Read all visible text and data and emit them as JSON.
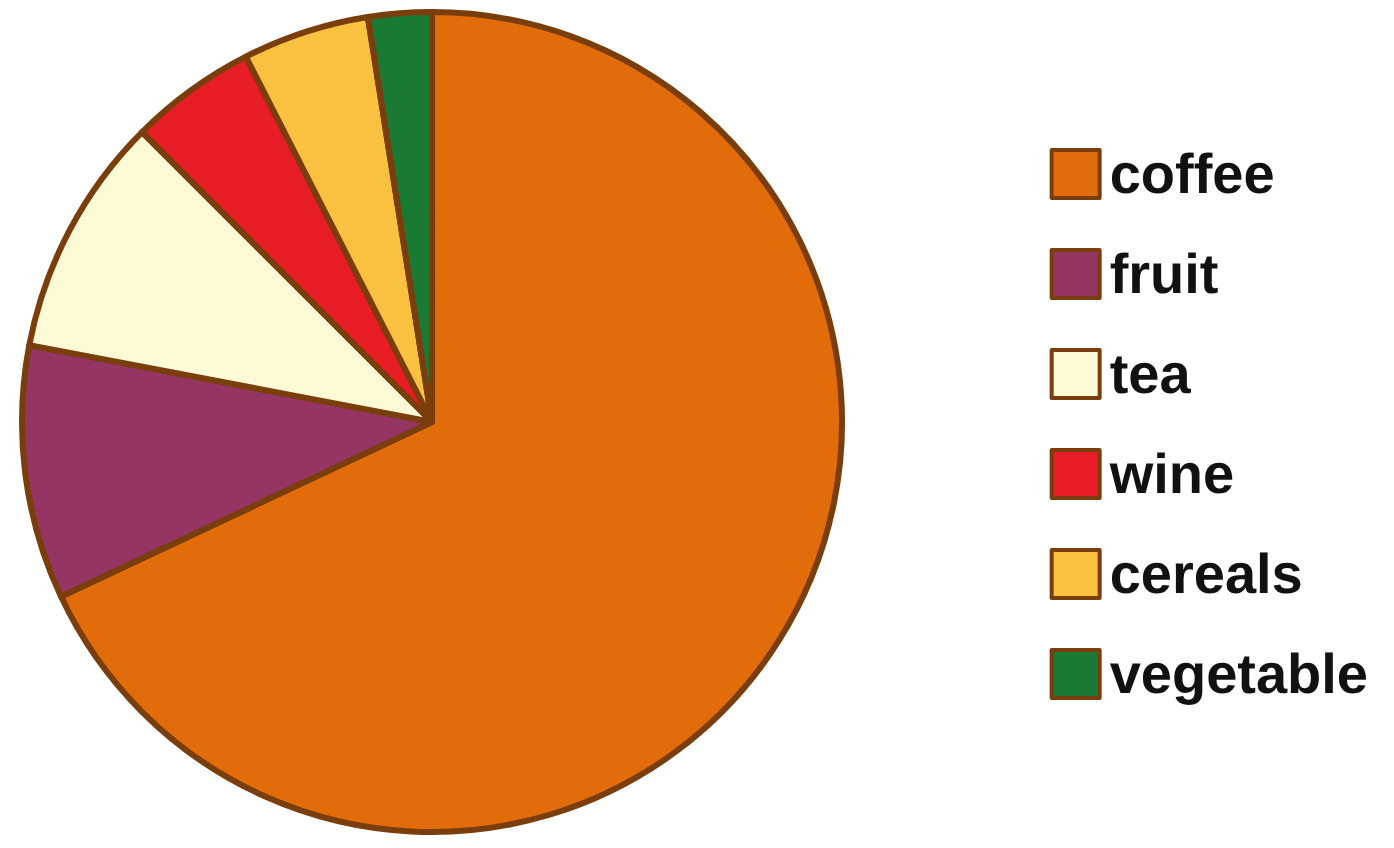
{
  "chart_data": {
    "type": "pie",
    "categories": [
      "coffee",
      "fruit",
      "tea",
      "wine",
      "cereals",
      "vegetable"
    ],
    "values": [
      68,
      10,
      9.5,
      5,
      5,
      2.5
    ],
    "colors": [
      "#e36c0a",
      "#953563",
      "#fdfbd5",
      "#e81c24",
      "#fac040",
      "#1a7a34"
    ],
    "legend": "right"
  }
}
